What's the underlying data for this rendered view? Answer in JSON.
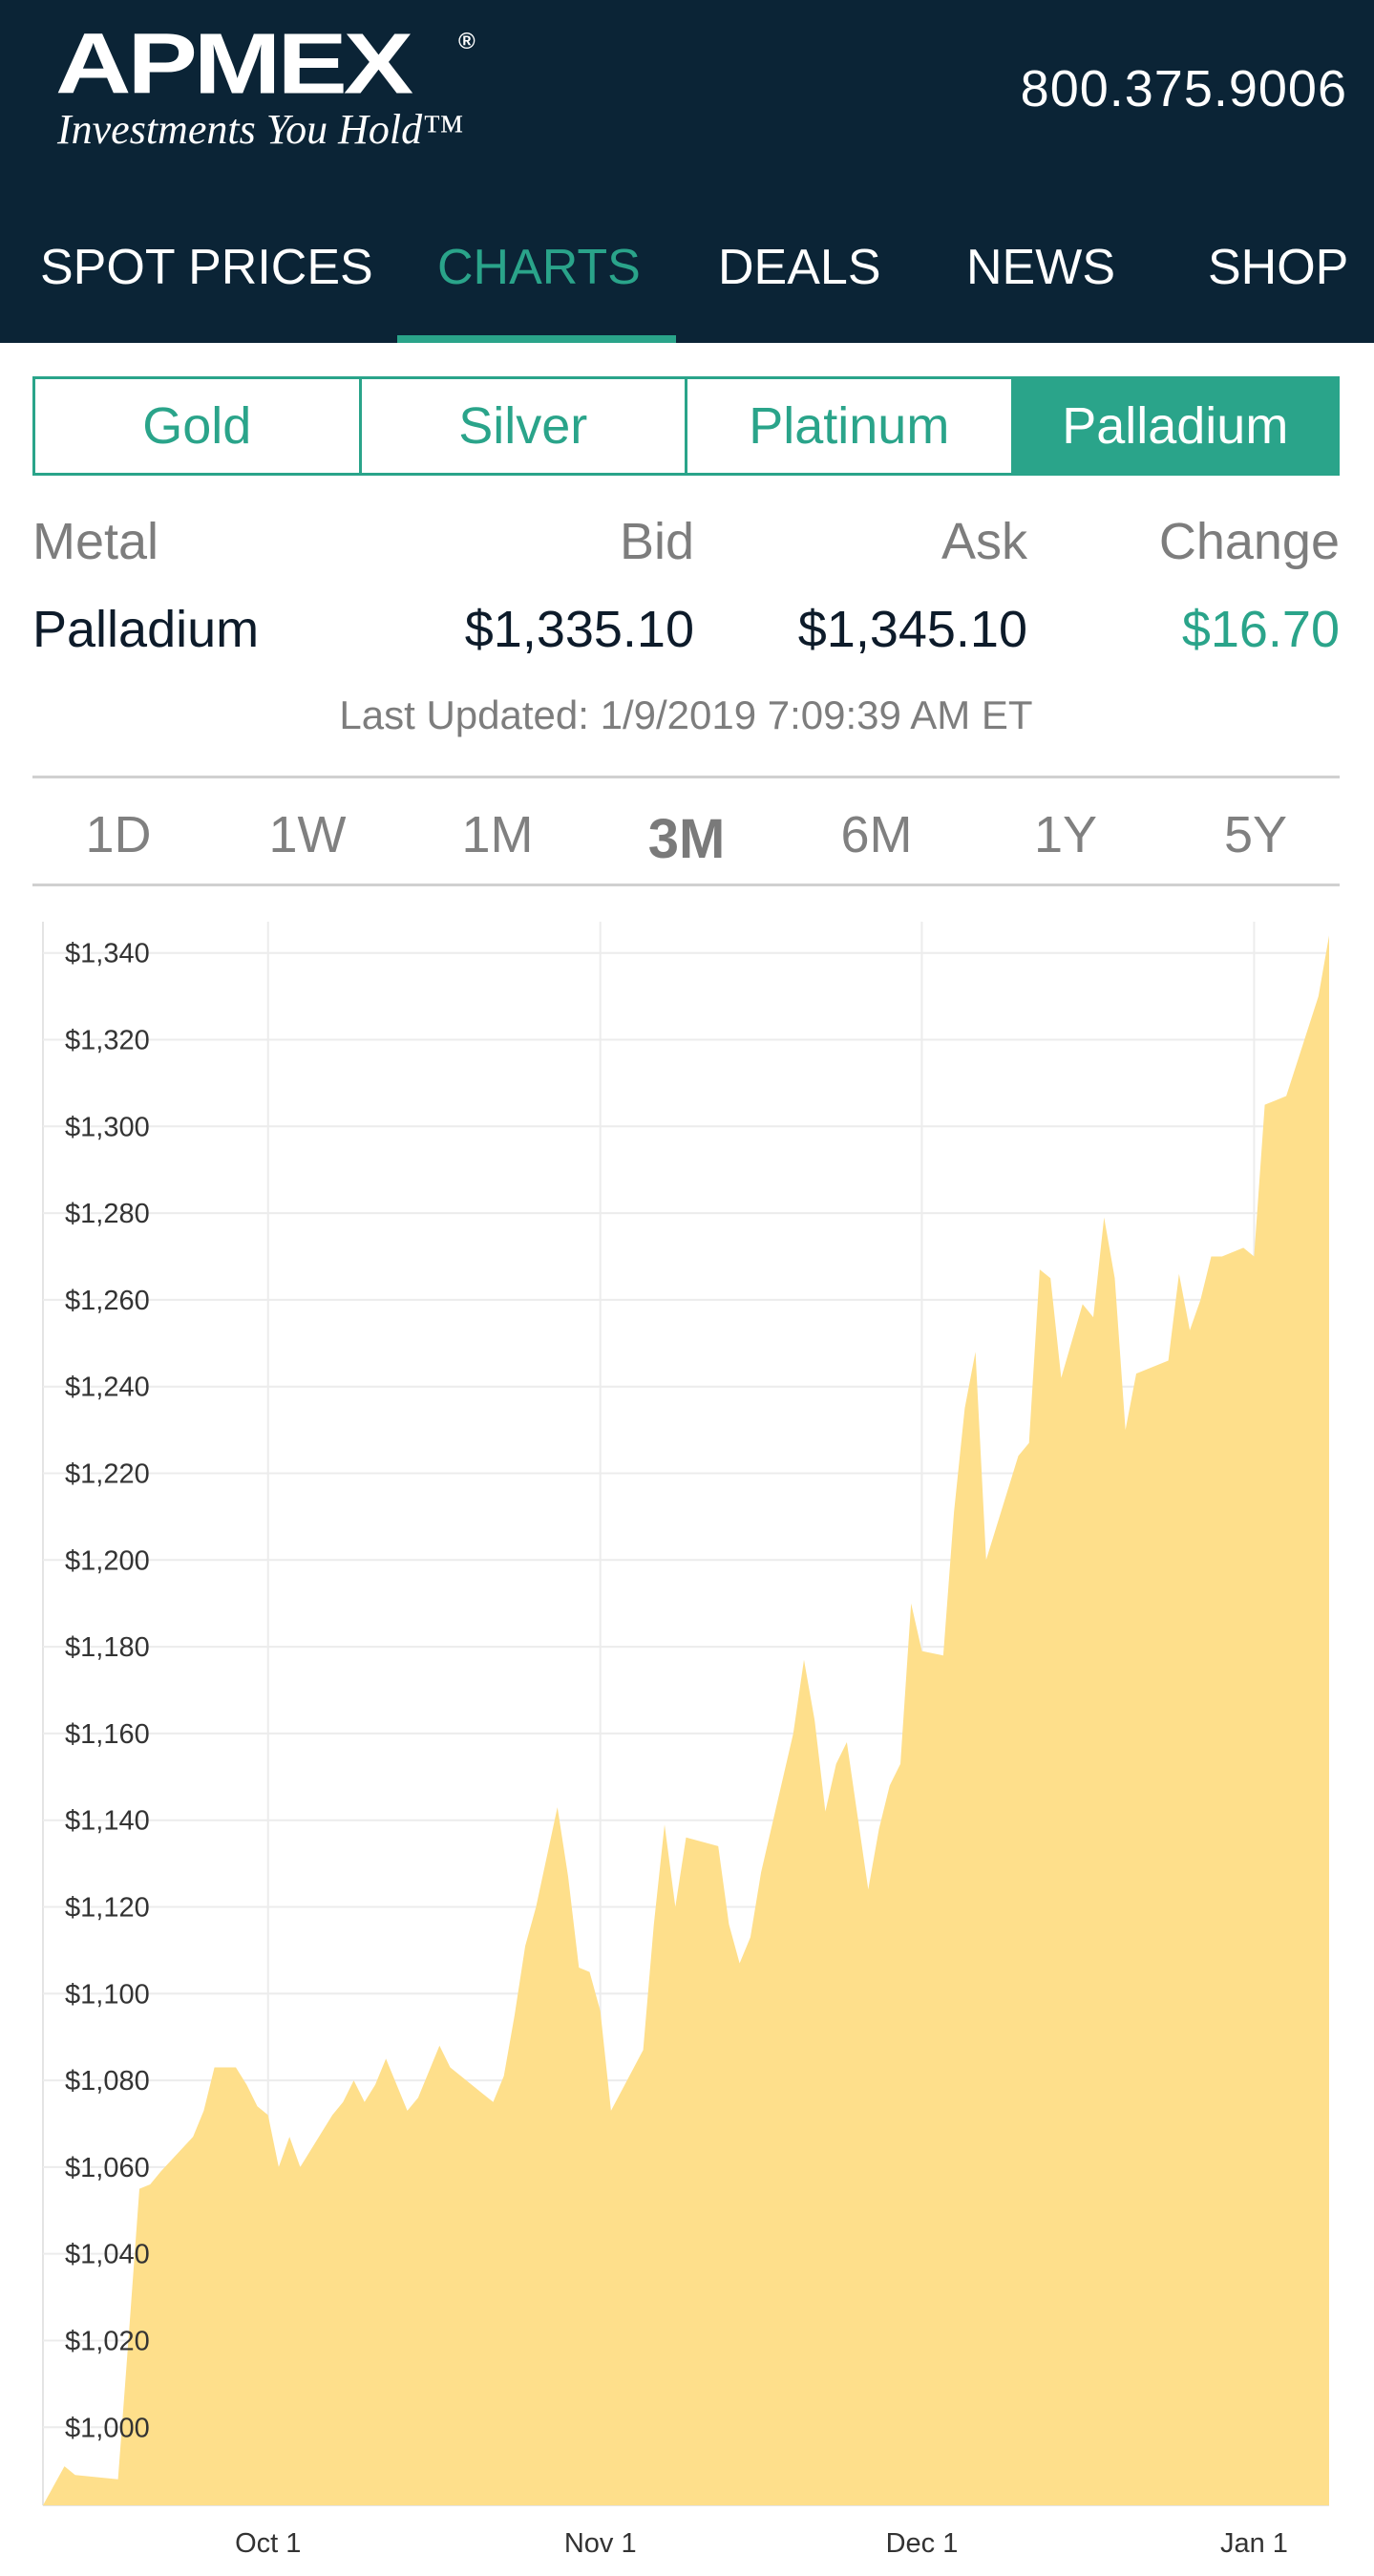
{
  "header": {
    "logo": {
      "word": "APMEX",
      "registered": "®",
      "tagline": "Investments You Hold™"
    },
    "phone": "800.375.9006",
    "nav": {
      "items": [
        {
          "label": "SPOT PRICES",
          "active": false
        },
        {
          "label": "CHARTS",
          "active": true
        },
        {
          "label": "DEALS",
          "active": false
        },
        {
          "label": "NEWS",
          "active": false
        },
        {
          "label": "SHOP",
          "active": false
        }
      ]
    }
  },
  "metal_tabs": [
    {
      "label": "Gold",
      "active": false
    },
    {
      "label": "Silver",
      "active": false
    },
    {
      "label": "Platinum",
      "active": false
    },
    {
      "label": "Palladium",
      "active": true
    }
  ],
  "price_table": {
    "headers": {
      "metal": "Metal",
      "bid": "Bid",
      "ask": "Ask",
      "change": "Change"
    },
    "row": {
      "metal": "Palladium",
      "bid": "$1,335.10",
      "ask": "$1,345.10",
      "change": "$16.70"
    }
  },
  "last_updated": "Last Updated: 1/9/2019 7:09:39 AM ET",
  "time_ranges": [
    {
      "label": "1D",
      "active": false
    },
    {
      "label": "1W",
      "active": false
    },
    {
      "label": "1M",
      "active": false
    },
    {
      "label": "3M",
      "active": true
    },
    {
      "label": "6M",
      "active": false
    },
    {
      "label": "1Y",
      "active": false
    },
    {
      "label": "5Y",
      "active": false
    }
  ],
  "colors": {
    "header_bg": "#0b2436",
    "accent": "#2aa48a",
    "area_fill": "#fedf8b"
  },
  "chart_data": {
    "type": "area",
    "title": "",
    "xlabel": "",
    "ylabel": "",
    "x_start": "2018-09-10",
    "x_end": "2019-01-08",
    "x_ticks": [
      {
        "date": "2018-10-01",
        "label": "Oct 1"
      },
      {
        "date": "2018-11-01",
        "label": "Nov 1"
      },
      {
        "date": "2018-12-01",
        "label": "Dec 1"
      },
      {
        "date": "2019-01-01",
        "label": "Jan 1"
      }
    ],
    "ylim": [
      982,
      1345
    ],
    "y_ticks": [
      1000,
      1020,
      1040,
      1060,
      1080,
      1100,
      1120,
      1140,
      1160,
      1180,
      1200,
      1220,
      1240,
      1260,
      1280,
      1300,
      1320,
      1340
    ],
    "y_tick_labels": [
      "$1,000",
      "$1,020",
      "$1,040",
      "$1,060",
      "$1,080",
      "$1,100",
      "$1,120",
      "$1,140",
      "$1,160",
      "$1,180",
      "$1,200",
      "$1,220",
      "$1,240",
      "$1,260",
      "$1,280",
      "$1,300",
      "$1,320",
      "$1,340"
    ],
    "grid": true,
    "legend": "none",
    "series": [
      {
        "x": [
          "2018-09-10",
          "2018-09-12",
          "2018-09-13",
          "2018-09-17",
          "2018-09-18",
          "2018-09-19",
          "2018-09-20",
          "2018-09-21",
          "2018-09-24",
          "2018-09-25",
          "2018-09-26",
          "2018-09-28",
          "2018-09-29",
          "2018-09-30",
          "2018-10-01",
          "2018-10-02",
          "2018-10-03",
          "2018-10-04",
          "2018-10-07",
          "2018-10-08",
          "2018-10-09",
          "2018-10-10",
          "2018-10-11",
          "2018-10-12",
          "2018-10-14",
          "2018-10-15",
          "2018-10-16",
          "2018-10-17",
          "2018-10-18",
          "2018-10-21",
          "2018-10-22",
          "2018-10-23",
          "2018-10-24",
          "2018-10-25",
          "2018-10-26",
          "2018-10-28",
          "2018-10-29",
          "2018-10-30",
          "2018-10-31",
          "2018-11-01",
          "2018-11-02",
          "2018-11-05",
          "2018-11-06",
          "2018-11-07",
          "2018-11-08",
          "2018-11-09",
          "2018-11-12",
          "2018-11-13",
          "2018-11-14",
          "2018-11-15",
          "2018-11-16",
          "2018-11-19",
          "2018-11-20",
          "2018-11-21",
          "2018-11-22",
          "2018-11-23",
          "2018-11-24",
          "2018-11-26",
          "2018-11-27",
          "2018-11-28",
          "2018-11-29",
          "2018-11-30",
          "2018-12-01",
          "2018-12-03",
          "2018-12-04",
          "2018-12-05",
          "2018-12-06",
          "2018-12-07",
          "2018-12-10",
          "2018-12-11",
          "2018-12-12",
          "2018-12-13",
          "2018-12-14",
          "2018-12-16",
          "2018-12-17",
          "2018-12-18",
          "2018-12-19",
          "2018-12-20",
          "2018-12-21",
          "2018-12-24",
          "2018-12-25",
          "2018-12-26",
          "2018-12-27",
          "2018-12-28",
          "2018-12-29",
          "2018-12-31",
          "2019-01-01",
          "2019-01-02",
          "2019-01-03",
          "2019-01-04",
          "2019-01-07",
          "2019-01-08"
        ],
        "values": [
          982,
          991,
          989,
          988,
          1021,
          1055,
          1056,
          1059,
          1067,
          1073,
          1083,
          1083,
          1079,
          1074,
          1072,
          1060,
          1067,
          1060,
          1072,
          1075,
          1080,
          1075,
          1079,
          1085,
          1073,
          1076,
          1082,
          1088,
          1083,
          1077,
          1075,
          1081,
          1095,
          1111,
          1120,
          1143,
          1127,
          1106,
          1105,
          1096,
          1073,
          1087,
          1116,
          1139,
          1120,
          1136,
          1134,
          1116,
          1107,
          1113,
          1128,
          1160,
          1177,
          1163,
          1142,
          1153,
          1158,
          1124,
          1138,
          1148,
          1153,
          1190,
          1179,
          1178,
          1211,
          1235,
          1248,
          1200,
          1224,
          1227,
          1267,
          1265,
          1242,
          1259,
          1256,
          1279,
          1265,
          1230,
          1243,
          1246,
          1266,
          1253,
          1260,
          1270,
          1270,
          1272,
          1270,
          1305,
          1306,
          1307,
          1330,
          1344
        ]
      }
    ]
  }
}
